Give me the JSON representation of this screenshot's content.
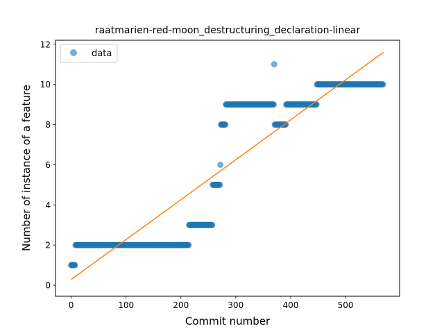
{
  "chart_data": {
    "type": "scatter",
    "title": "raatmarien-red-moon_destructuring_declaration-linear",
    "xlabel": "Commit number",
    "ylabel": "Number of instance of a feature",
    "xlim": [
      -28.5,
      598.5
    ],
    "ylim": [
      -0.55,
      12.2
    ],
    "xticks": [
      0,
      100,
      200,
      300,
      400,
      500
    ],
    "yticks": [
      0,
      2,
      4,
      6,
      8,
      10,
      12
    ],
    "grid": false,
    "legend": {
      "position": "top-left",
      "entries": [
        "data"
      ]
    },
    "colors": {
      "data": "#1f77b4",
      "fit": "#ff7f0e"
    },
    "series": [
      {
        "name": "data",
        "kind": "scatter",
        "segments": [
          {
            "x_start": 0,
            "x_end": 8,
            "y": 1
          },
          {
            "x_start": 8,
            "x_end": 215,
            "y": 2
          },
          {
            "x_start": 215,
            "x_end": 258,
            "y": 3
          },
          {
            "x_start": 258,
            "x_end": 272,
            "y": 5
          },
          {
            "x_start": 272,
            "x_end": 273,
            "y": 6
          },
          {
            "x_start": 273,
            "x_end": 282,
            "y": 8
          },
          {
            "x_start": 282,
            "x_end": 370,
            "y": 9
          },
          {
            "x_start": 370,
            "x_end": 371,
            "y": 11
          },
          {
            "x_start": 371,
            "x_end": 392,
            "y": 8
          },
          {
            "x_start": 392,
            "x_end": 448,
            "y": 9
          },
          {
            "x_start": 448,
            "x_end": 569,
            "y": 10
          }
        ]
      },
      {
        "kind": "line",
        "x": [
          0,
          569
        ],
        "y": [
          0.28,
          11.6
        ]
      }
    ]
  }
}
